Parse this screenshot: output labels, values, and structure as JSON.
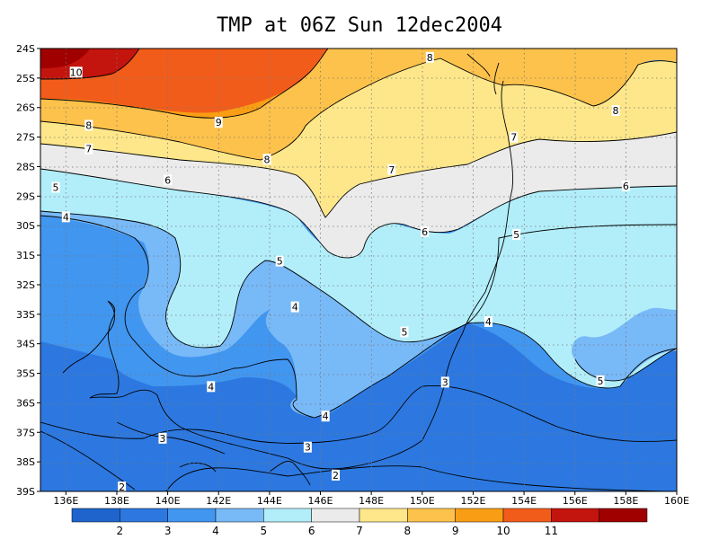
{
  "title": "TMP at 06Z Sun 12dec2004",
  "map": {
    "lat_labels": [
      "24S",
      "25S",
      "26S",
      "27S",
      "28S",
      "29S",
      "30S",
      "31S",
      "32S",
      "33S",
      "34S",
      "35S",
      "36S",
      "37S",
      "38S",
      "39S"
    ],
    "lon_labels": [
      "136E",
      "138E",
      "140E",
      "142E",
      "144E",
      "146E",
      "148E",
      "150E",
      "152E",
      "154E",
      "156E",
      "158E",
      "160E"
    ],
    "contour_labels": [
      {
        "v": "10",
        "lon": 136.4,
        "lat": -24.8
      },
      {
        "v": "9",
        "lon": 142.0,
        "lat": -26.5
      },
      {
        "v": "8",
        "lon": 136.9,
        "lat": -26.6
      },
      {
        "v": "8",
        "lon": 143.9,
        "lat": -27.75
      },
      {
        "v": "8",
        "lon": 150.3,
        "lat": -24.3
      },
      {
        "v": "8",
        "lon": 157.6,
        "lat": -26.1
      },
      {
        "v": "7",
        "lon": 136.9,
        "lat": -27.4
      },
      {
        "v": "7",
        "lon": 148.8,
        "lat": -28.1
      },
      {
        "v": "7",
        "lon": 153.6,
        "lat": -27.0
      },
      {
        "v": "6",
        "lon": 140.0,
        "lat": -28.45
      },
      {
        "v": "6",
        "lon": 150.1,
        "lat": -30.2
      },
      {
        "v": "6",
        "lon": 158.0,
        "lat": -28.65
      },
      {
        "v": "5",
        "lon": 135.6,
        "lat": -28.7
      },
      {
        "v": "5",
        "lon": 144.4,
        "lat": -31.2
      },
      {
        "v": "5",
        "lon": 149.3,
        "lat": -33.6
      },
      {
        "v": "5",
        "lon": 153.7,
        "lat": -30.3
      },
      {
        "v": "5",
        "lon": 157.0,
        "lat": -35.25
      },
      {
        "v": "4",
        "lon": 136.0,
        "lat": -29.7
      },
      {
        "v": "4",
        "lon": 145.0,
        "lat": -32.75
      },
      {
        "v": "4",
        "lon": 152.6,
        "lat": -33.25
      },
      {
        "v": "4",
        "lon": 141.7,
        "lat": -35.45
      },
      {
        "v": "4",
        "lon": 146.2,
        "lat": -36.45
      },
      {
        "v": "3",
        "lon": 150.9,
        "lat": -35.3
      },
      {
        "v": "3",
        "lon": 139.8,
        "lat": -37.2
      },
      {
        "v": "3",
        "lon": 145.5,
        "lat": -37.5
      },
      {
        "v": "2",
        "lon": 138.2,
        "lat": -38.85
      },
      {
        "v": "2",
        "lon": 146.6,
        "lat": -38.45
      }
    ]
  },
  "colorbar": {
    "labels": [
      "2",
      "3",
      "4",
      "5",
      "6",
      "7",
      "8",
      "9",
      "10",
      "11"
    ],
    "colors": [
      "#1e64cc",
      "#2c78e0",
      "#4196f0",
      "#78b9f8",
      "#b2eefa",
      "#ebebeb",
      "#fde78a",
      "#fdc24b",
      "#f99e14",
      "#f25c1a",
      "#c3140e",
      "#a00000"
    ]
  }
}
